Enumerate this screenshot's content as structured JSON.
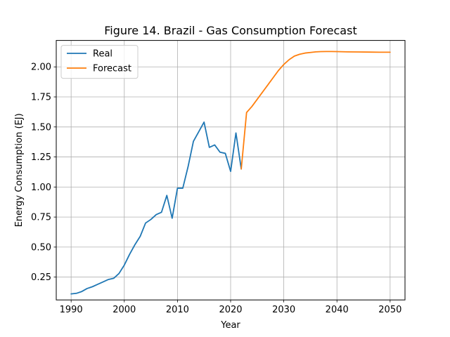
{
  "chart_data": {
    "type": "line",
    "title": "Figure 14. Brazil - Gas Consumption Forecast",
    "xlabel": "Year",
    "ylabel": "Energy Consumption (EJ)",
    "xlim": [
      1987.2,
      2052.8
    ],
    "ylim": [
      0.06,
      2.22
    ],
    "x_ticks": [
      1990,
      2000,
      2010,
      2020,
      2030,
      2040,
      2050
    ],
    "x_tick_labels": [
      "1990",
      "2000",
      "2010",
      "2020",
      "2030",
      "2040",
      "2050"
    ],
    "y_ticks": [
      0.25,
      0.5,
      0.75,
      1.0,
      1.25,
      1.5,
      1.75,
      2.0
    ],
    "y_tick_labels": [
      "0.25",
      "0.50",
      "0.75",
      "1.00",
      "1.25",
      "1.50",
      "1.75",
      "2.00"
    ],
    "grid": true,
    "legend_position": "top-left",
    "series": [
      {
        "name": "Real",
        "color": "#1f77b4",
        "x": [
          1990,
          1991,
          1992,
          1993,
          1994,
          1995,
          1996,
          1997,
          1998,
          1999,
          2000,
          2001,
          2002,
          2003,
          2004,
          2005,
          2006,
          2007,
          2008,
          2009,
          2010,
          2011,
          2012,
          2013,
          2014,
          2015,
          2016,
          2017,
          2018,
          2019,
          2020,
          2021,
          2022
        ],
        "values": [
          0.11,
          0.115,
          0.13,
          0.155,
          0.17,
          0.19,
          0.21,
          0.23,
          0.24,
          0.28,
          0.35,
          0.44,
          0.52,
          0.59,
          0.7,
          0.73,
          0.77,
          0.79,
          0.93,
          0.74,
          0.99,
          0.99,
          1.17,
          1.38,
          1.46,
          1.54,
          1.33,
          1.35,
          1.29,
          1.28,
          1.13,
          1.45,
          1.15
        ]
      },
      {
        "name": "Forecast",
        "color": "#ff7f0e",
        "x": [
          2022,
          2023,
          2024,
          2025,
          2026,
          2027,
          2028,
          2029,
          2030,
          2031,
          2032,
          2033,
          2034,
          2035,
          2036,
          2037,
          2038,
          2039,
          2040,
          2042,
          2044,
          2046,
          2048,
          2050
        ],
        "values": [
          1.15,
          1.62,
          1.67,
          1.73,
          1.79,
          1.85,
          1.91,
          1.97,
          2.02,
          2.06,
          2.09,
          2.105,
          2.115,
          2.12,
          2.125,
          2.127,
          2.128,
          2.128,
          2.127,
          2.125,
          2.124,
          2.123,
          2.122,
          2.122
        ]
      }
    ]
  }
}
